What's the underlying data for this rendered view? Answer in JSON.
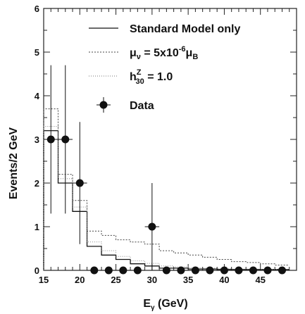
{
  "chart_data": {
    "type": "step",
    "xlabel_main": "E",
    "xlabel_sub": "γ",
    "xlabel_unit": " (GeV)",
    "ylabel": "Events/2 GeV",
    "xlim": [
      15,
      50
    ],
    "ylim": [
      0,
      6
    ],
    "xticks": [
      15,
      20,
      25,
      30,
      35,
      40,
      45
    ],
    "yticks": [
      0,
      1,
      2,
      3,
      4,
      5,
      6
    ],
    "bin_edges": [
      15,
      17,
      19,
      21,
      23,
      25,
      27,
      29,
      31,
      33,
      35,
      37,
      39,
      41,
      43,
      45,
      47,
      49
    ],
    "series": [
      {
        "name": "Standard Model only",
        "style": "solid",
        "values": [
          3.2,
          2.0,
          1.35,
          0.55,
          0.35,
          0.25,
          0.15,
          0.1,
          0.05,
          0.05,
          0.03,
          0.03,
          0.02,
          0.02,
          0.02,
          0.02,
          0.02
        ]
      },
      {
        "name_prefix": "μ",
        "name_sub": "ν",
        "name_mid": " = 5x10",
        "name_sup": "-6",
        "name_end": "μ",
        "name_end_sub": "B",
        "style": "dotted",
        "values": [
          3.7,
          2.2,
          1.6,
          0.9,
          0.8,
          0.7,
          0.65,
          0.6,
          0.45,
          0.4,
          0.35,
          0.3,
          0.25,
          0.2,
          0.18,
          0.15,
          0.12
        ]
      },
      {
        "name_prefix": "h",
        "name_sup": "Z",
        "name_sub": "30",
        "name_end": " = 1.0",
        "style": "fine-dotted",
        "values": [
          3.3,
          2.1,
          1.45,
          0.65,
          0.45,
          0.32,
          0.22,
          0.16,
          0.1,
          0.08,
          0.06,
          0.05,
          0.04,
          0.03,
          0.03,
          0.02,
          0.02
        ]
      }
    ],
    "data": {
      "name": "Data",
      "points": [
        {
          "x": 16,
          "y": 3,
          "err": 1.7
        },
        {
          "x": 18,
          "y": 3,
          "err": 1.7
        },
        {
          "x": 20,
          "y": 2,
          "err": 1.4
        },
        {
          "x": 22,
          "y": 0,
          "err": 0
        },
        {
          "x": 24,
          "y": 0,
          "err": 0
        },
        {
          "x": 26,
          "y": 0,
          "err": 0
        },
        {
          "x": 28,
          "y": 0,
          "err": 0
        },
        {
          "x": 30,
          "y": 1,
          "err": 1.0
        },
        {
          "x": 32,
          "y": 0,
          "err": 0
        },
        {
          "x": 34,
          "y": 0,
          "err": 0
        },
        {
          "x": 36,
          "y": 0,
          "err": 0
        },
        {
          "x": 38,
          "y": 0,
          "err": 0
        },
        {
          "x": 40,
          "y": 0,
          "err": 0
        },
        {
          "x": 42,
          "y": 0,
          "err": 0
        },
        {
          "x": 44,
          "y": 0,
          "err": 0
        },
        {
          "x": 46,
          "y": 0,
          "err": 0
        },
        {
          "x": 48,
          "y": 0,
          "err": 0
        }
      ]
    }
  }
}
